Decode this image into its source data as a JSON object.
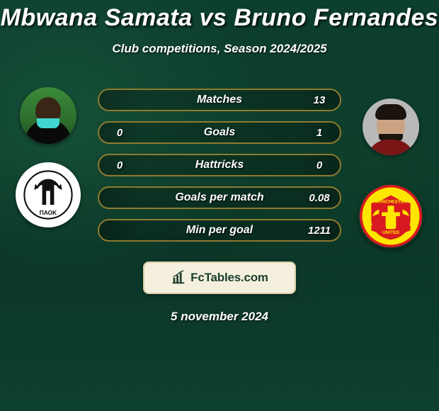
{
  "title": "Mbwana Samata vs Bruno Fernandes",
  "subtitle": "Club competitions, Season 2024/2025",
  "date": "5 november 2024",
  "branding": {
    "text": "FcTables.com"
  },
  "colors": {
    "row_border": "#8e7a30",
    "row_fill_dark": "rgba(0,0,0,0.22)",
    "row_fill_edge": "rgba(0,0,0,0.4)",
    "branding_bg": "#f4f0dd",
    "branding_border": "#d8cfa5",
    "branding_text": "#1c3d2e"
  },
  "players": {
    "left": {
      "name": "Mbwana Samata",
      "club": "PAOK"
    },
    "right": {
      "name": "Bruno Fernandes",
      "club": "Manchester United"
    }
  },
  "rows": [
    {
      "label": "Matches",
      "left": "",
      "right": "13"
    },
    {
      "label": "Goals",
      "left": "0",
      "right": "1"
    },
    {
      "label": "Hattricks",
      "left": "0",
      "right": "0"
    },
    {
      "label": "Goals per match",
      "left": "",
      "right": "0.08"
    },
    {
      "label": "Min per goal",
      "left": "",
      "right": "1211"
    }
  ],
  "crest_colors": {
    "paok_bg": "#ffffff",
    "paok_ink": "#111111",
    "mufc_red": "#d81920",
    "mufc_yellow": "#ffe600",
    "mufc_black": "#111111"
  }
}
